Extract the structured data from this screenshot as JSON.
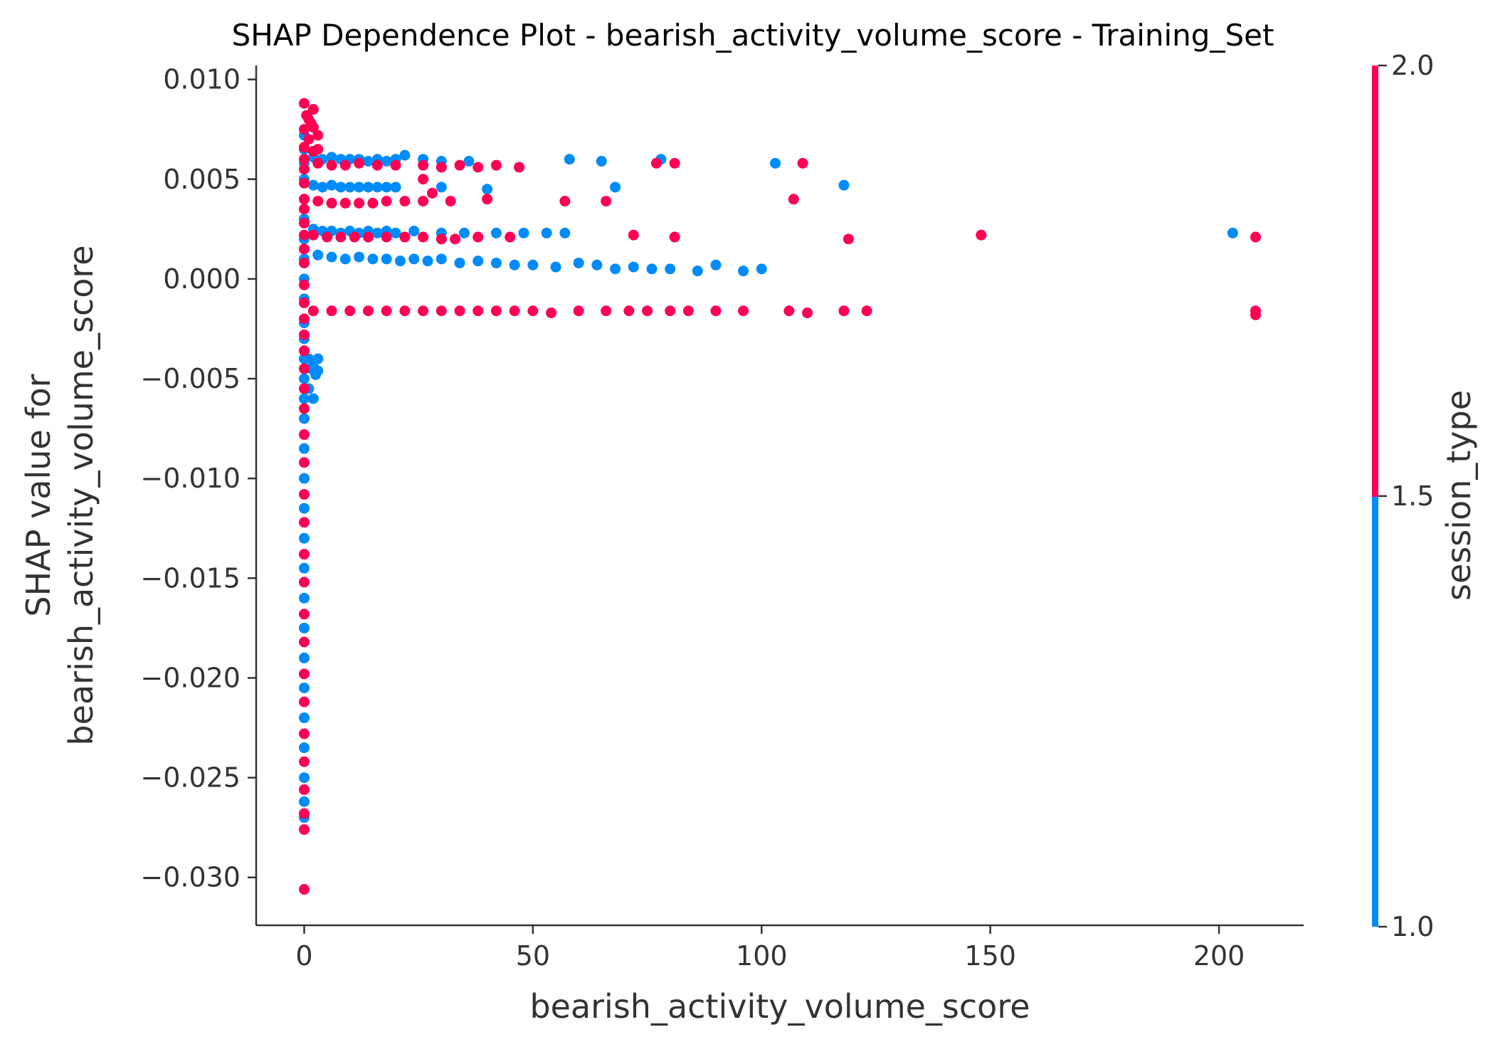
{
  "chart_data": {
    "type": "scatter",
    "title": "SHAP Dependence Plot - bearish_activity_volume_score - Training_Set",
    "xlabel": "bearish_activity_volume_score",
    "ylabel_lines": [
      "SHAP value for",
      "bearish_activity_volume_score"
    ],
    "xlim": [
      -10.5,
      218.5
    ],
    "ylim": [
      -0.0324,
      0.0107
    ],
    "xticks": [
      0,
      50,
      100,
      150,
      200
    ],
    "xtick_labels": [
      "0",
      "50",
      "100",
      "150",
      "200"
    ],
    "yticks": [
      0.01,
      0.005,
      0.0,
      -0.005,
      -0.01,
      -0.015,
      -0.02,
      -0.025,
      -0.03
    ],
    "ytick_labels": [
      "0.010",
      "0.005",
      "0.000",
      "−0.005",
      "−0.010",
      "−0.015",
      "−0.020",
      "−0.025",
      "−0.030"
    ],
    "grid": false,
    "colorbar": {
      "label": "session_type",
      "ticks": [
        1.0,
        1.5,
        2.0
      ],
      "tick_labels": [
        "1.0",
        "1.5",
        "2.0"
      ],
      "low_color": "#008bfb",
      "high_color": "#ff0052",
      "split_value": 1.5
    },
    "series": [
      {
        "name": "1.0",
        "color": "#008bfb",
        "points": [
          [
            0,
            0.0072
          ],
          [
            0,
            0.0065
          ],
          [
            0,
            0.0058
          ],
          [
            0,
            0.005
          ],
          [
            0,
            0.004
          ],
          [
            0,
            0.003
          ],
          [
            0,
            0.002
          ],
          [
            0,
            0.001
          ],
          [
            0,
            0.0
          ],
          [
            0,
            -0.001
          ],
          [
            0,
            -0.0022
          ],
          [
            0,
            -0.003
          ],
          [
            0,
            -0.004
          ],
          [
            0,
            -0.005
          ],
          [
            0,
            -0.006
          ],
          [
            0,
            -0.007
          ],
          [
            0,
            -0.0085
          ],
          [
            0,
            -0.01
          ],
          [
            0,
            -0.0115
          ],
          [
            0,
            -0.013
          ],
          [
            0,
            -0.0145
          ],
          [
            0,
            -0.016
          ],
          [
            0,
            -0.0175
          ],
          [
            0,
            -0.019
          ],
          [
            0,
            -0.0205
          ],
          [
            0,
            -0.022
          ],
          [
            0,
            -0.0235
          ],
          [
            0,
            -0.025
          ],
          [
            0,
            -0.0262
          ],
          [
            0,
            -0.027
          ],
          [
            1,
            -0.004
          ],
          [
            1.5,
            -0.0045
          ],
          [
            2,
            -0.0042
          ],
          [
            2.5,
            -0.0048
          ],
          [
            1,
            -0.0055
          ],
          [
            2,
            -0.006
          ],
          [
            3,
            -0.0046
          ],
          [
            3,
            -0.004
          ],
          [
            2,
            0.0061
          ],
          [
            4,
            0.006
          ],
          [
            6,
            0.0061
          ],
          [
            8,
            0.006
          ],
          [
            10,
            0.006
          ],
          [
            12,
            0.006
          ],
          [
            14,
            0.0059
          ],
          [
            16,
            0.006
          ],
          [
            18,
            0.0059
          ],
          [
            20,
            0.006
          ],
          [
            22,
            0.0062
          ],
          [
            26,
            0.006
          ],
          [
            30,
            0.0059
          ],
          [
            36,
            0.0059
          ],
          [
            58,
            0.006
          ],
          [
            65,
            0.0059
          ],
          [
            78,
            0.006
          ],
          [
            103,
            0.0058
          ],
          [
            2,
            0.0047
          ],
          [
            4,
            0.0046
          ],
          [
            6,
            0.0047
          ],
          [
            8,
            0.0046
          ],
          [
            10,
            0.0046
          ],
          [
            12,
            0.0046
          ],
          [
            14,
            0.0046
          ],
          [
            16,
            0.0046
          ],
          [
            18,
            0.0046
          ],
          [
            20,
            0.0046
          ],
          [
            30,
            0.0046
          ],
          [
            40,
            0.0045
          ],
          [
            68,
            0.0046
          ],
          [
            118,
            0.0047
          ],
          [
            2,
            0.0025
          ],
          [
            4,
            0.0024
          ],
          [
            6,
            0.0024
          ],
          [
            8,
            0.0023
          ],
          [
            10,
            0.0024
          ],
          [
            12,
            0.0023
          ],
          [
            14,
            0.0024
          ],
          [
            16,
            0.0023
          ],
          [
            18,
            0.0024
          ],
          [
            20,
            0.0023
          ],
          [
            24,
            0.0024
          ],
          [
            30,
            0.0023
          ],
          [
            35,
            0.0023
          ],
          [
            42,
            0.0023
          ],
          [
            48,
            0.0023
          ],
          [
            53,
            0.0023
          ],
          [
            57,
            0.0023
          ],
          [
            203,
            0.0023
          ],
          [
            3,
            0.0012
          ],
          [
            6,
            0.0011
          ],
          [
            9,
            0.001
          ],
          [
            12,
            0.0011
          ],
          [
            15,
            0.001
          ],
          [
            18,
            0.001
          ],
          [
            21,
            0.0009
          ],
          [
            24,
            0.001
          ],
          [
            27,
            0.0009
          ],
          [
            30,
            0.001
          ],
          [
            34,
            0.0008
          ],
          [
            38,
            0.0009
          ],
          [
            42,
            0.0008
          ],
          [
            46,
            0.0007
          ],
          [
            50,
            0.0007
          ],
          [
            55,
            0.0006
          ],
          [
            60,
            0.0008
          ],
          [
            64,
            0.0007
          ],
          [
            68,
            0.0005
          ],
          [
            72,
            0.0006
          ],
          [
            76,
            0.0005
          ],
          [
            80,
            0.0005
          ],
          [
            86,
            0.0004
          ],
          [
            90,
            0.0007
          ],
          [
            96,
            0.0004
          ],
          [
            100,
            0.0005
          ]
        ]
      },
      {
        "name": "2.0",
        "color": "#ff0052",
        "points": [
          [
            0,
            0.0088
          ],
          [
            0.5,
            0.0082
          ],
          [
            1,
            0.008
          ],
          [
            0,
            0.0075
          ],
          [
            1.5,
            0.0078
          ],
          [
            2,
            0.0085
          ],
          [
            2,
            0.0076
          ],
          [
            1,
            0.007
          ],
          [
            3,
            0.0072
          ],
          [
            0,
            0.0066
          ],
          [
            2,
            0.0064
          ],
          [
            0,
            0.006
          ],
          [
            3,
            0.0065
          ],
          [
            0,
            0.0055
          ],
          [
            0,
            0.0048
          ],
          [
            0,
            0.004
          ],
          [
            0,
            0.0035
          ],
          [
            0,
            0.0028
          ],
          [
            0,
            0.0022
          ],
          [
            0,
            0.0015
          ],
          [
            0,
            0.0008
          ],
          [
            0,
            -0.0003
          ],
          [
            0,
            -0.0012
          ],
          [
            0,
            -0.002
          ],
          [
            0,
            -0.0028
          ],
          [
            0,
            -0.0036
          ],
          [
            0,
            -0.0045
          ],
          [
            0,
            -0.0055
          ],
          [
            0,
            -0.0065
          ],
          [
            0,
            -0.0078
          ],
          [
            0,
            -0.0092
          ],
          [
            0,
            -0.0108
          ],
          [
            0,
            -0.0122
          ],
          [
            0,
            -0.0138
          ],
          [
            0,
            -0.0152
          ],
          [
            0,
            -0.0168
          ],
          [
            0,
            -0.0182
          ],
          [
            0,
            -0.0198
          ],
          [
            0,
            -0.0212
          ],
          [
            0,
            -0.0228
          ],
          [
            0,
            -0.0242
          ],
          [
            0,
            -0.0256
          ],
          [
            0,
            -0.0268
          ],
          [
            0,
            -0.0276
          ],
          [
            0,
            -0.0306
          ],
          [
            3,
            0.0058
          ],
          [
            6,
            0.0057
          ],
          [
            9,
            0.0057
          ],
          [
            12,
            0.0058
          ],
          [
            16,
            0.0057
          ],
          [
            20,
            0.0057
          ],
          [
            26,
            0.0057
          ],
          [
            30,
            0.0056
          ],
          [
            34,
            0.0057
          ],
          [
            38,
            0.0056
          ],
          [
            42,
            0.0057
          ],
          [
            47,
            0.0056
          ],
          [
            77,
            0.0058
          ],
          [
            81,
            0.0058
          ],
          [
            109,
            0.0058
          ],
          [
            3,
            0.0039
          ],
          [
            6,
            0.0038
          ],
          [
            9,
            0.0038
          ],
          [
            12,
            0.0038
          ],
          [
            15,
            0.0038
          ],
          [
            18,
            0.0039
          ],
          [
            22,
            0.0039
          ],
          [
            26,
            0.0039
          ],
          [
            32,
            0.0039
          ],
          [
            40,
            0.004
          ],
          [
            57,
            0.0039
          ],
          [
            66,
            0.0039
          ],
          [
            107,
            0.004
          ],
          [
            26,
            0.005
          ],
          [
            28,
            0.0043
          ],
          [
            2,
            0.0022
          ],
          [
            5,
            0.0021
          ],
          [
            8,
            0.0021
          ],
          [
            11,
            0.0021
          ],
          [
            14,
            0.0021
          ],
          [
            18,
            0.0021
          ],
          [
            22,
            0.0021
          ],
          [
            26,
            0.0021
          ],
          [
            30,
            0.002
          ],
          [
            33,
            0.002
          ],
          [
            38,
            0.0021
          ],
          [
            45,
            0.0021
          ],
          [
            72,
            0.0022
          ],
          [
            81,
            0.0021
          ],
          [
            119,
            0.002
          ],
          [
            148,
            0.0022
          ],
          [
            208,
            0.0021
          ],
          [
            2,
            -0.0016
          ],
          [
            6,
            -0.0016
          ],
          [
            10,
            -0.0016
          ],
          [
            14,
            -0.0016
          ],
          [
            18,
            -0.0016
          ],
          [
            22,
            -0.0016
          ],
          [
            26,
            -0.0016
          ],
          [
            30,
            -0.0016
          ],
          [
            34,
            -0.0016
          ],
          [
            38,
            -0.0016
          ],
          [
            42,
            -0.0016
          ],
          [
            46,
            -0.0016
          ],
          [
            50,
            -0.0016
          ],
          [
            54,
            -0.0017
          ],
          [
            60,
            -0.0016
          ],
          [
            66,
            -0.0016
          ],
          [
            71,
            -0.0016
          ],
          [
            75,
            -0.0016
          ],
          [
            80,
            -0.0016
          ],
          [
            84,
            -0.0016
          ],
          [
            90,
            -0.0016
          ],
          [
            96,
            -0.0016
          ],
          [
            106,
            -0.0016
          ],
          [
            110,
            -0.0017
          ],
          [
            118,
            -0.0016
          ],
          [
            123,
            -0.0016
          ],
          [
            208,
            -0.0016
          ],
          [
            208,
            -0.0018
          ]
        ]
      }
    ]
  }
}
